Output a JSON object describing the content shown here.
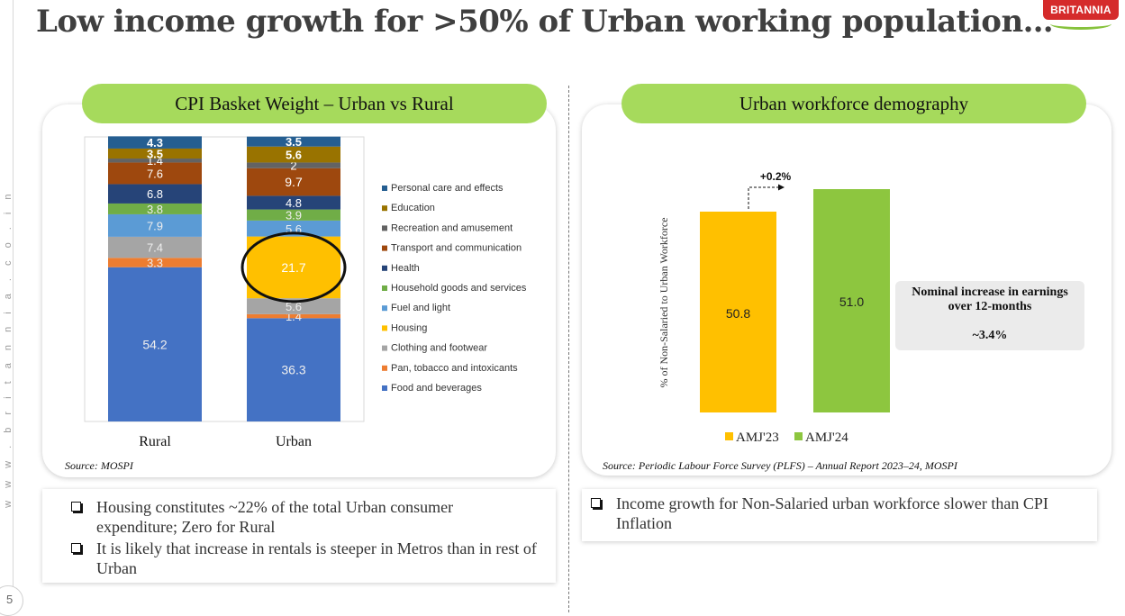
{
  "page": {
    "title": "Low income growth for >50% of Urban working population…",
    "website": "w w w . b r i t a n n i a . c o . i n",
    "page_number": "5",
    "logo_text": "BRITANNIA"
  },
  "left_panel": {
    "heading": "CPI Basket Weight – Urban vs Rural",
    "source": "Source: MOSPI",
    "bullets": [
      "Housing constitutes ~22% of the total Urban consumer expenditure; Zero for Rural",
      "It is likely that increase in rentals is steeper in Metros than in rest of Urban"
    ]
  },
  "right_panel": {
    "heading": "Urban workforce demography",
    "source": "Source: Periodic Labour Force Survey (PLFS) – Annual Report 2023–24, MOSPI",
    "callout": {
      "line1": "Nominal increase in earnings",
      "line2": "over 12-months",
      "value": "~3.4%"
    },
    "bullets": [
      "Income growth for Non-Salaried urban workforce slower than CPI Inflation"
    ]
  },
  "chart_data": [
    {
      "type": "bar",
      "stacked": true,
      "categories": [
        "Rural",
        "Urban"
      ],
      "series": [
        {
          "name": "Food and beverages",
          "color": "#4472c4",
          "values": [
            54.2,
            36.3
          ]
        },
        {
          "name": "Pan, tobacco and intoxicants",
          "color": "#ed7d31",
          "values": [
            3.3,
            1.4
          ]
        },
        {
          "name": "Clothing and footwear",
          "color": "#a5a5a5",
          "values": [
            7.4,
            5.6
          ]
        },
        {
          "name": "Housing",
          "color": "#ffc000",
          "values": [
            0,
            21.7
          ]
        },
        {
          "name": "Fuel and light",
          "color": "#5b9bd5",
          "values": [
            7.9,
            5.6
          ]
        },
        {
          "name": "Household goods and services",
          "color": "#70ad47",
          "values": [
            3.8,
            3.9
          ]
        },
        {
          "name": "Health",
          "color": "#264478",
          "values": [
            6.8,
            4.8
          ]
        },
        {
          "name": "Transport and communication",
          "color": "#9e480e",
          "values": [
            7.6,
            9.7
          ]
        },
        {
          "name": "Recreation and amusement",
          "color": "#636363",
          "values": [
            1.4,
            2.0
          ]
        },
        {
          "name": "Education",
          "color": "#997300",
          "values": [
            3.5,
            5.6
          ]
        },
        {
          "name": "Personal care and effects",
          "color": "#255e91",
          "values": [
            4.3,
            3.5
          ]
        }
      ],
      "ylim": [
        0,
        100
      ],
      "legend": "right",
      "highlight": {
        "series": "Housing",
        "category": "Urban"
      }
    },
    {
      "type": "bar",
      "categories": [
        "AMJ'23",
        "AMJ'24"
      ],
      "values": [
        50.8,
        51.0
      ],
      "colors": [
        "#ffc000",
        "#8dc63f"
      ],
      "ylabel": "% of Non-Salaried to Urban Workforce",
      "annotation": "+0.2%",
      "legend": "bottom"
    }
  ]
}
